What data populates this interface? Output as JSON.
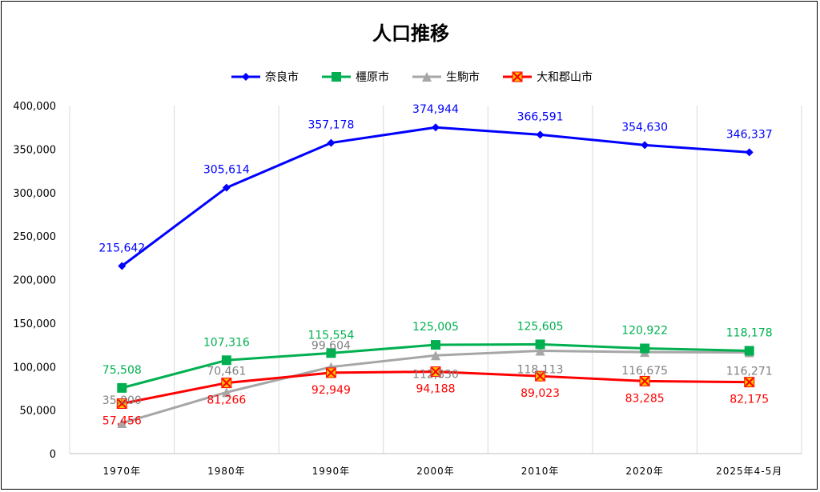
{
  "chart_data": {
    "type": "line",
    "title": "人口推移",
    "xlabel": "",
    "ylabel": "",
    "categories": [
      "1970年",
      "1980年",
      "1990年",
      "2000年",
      "2010年",
      "2020年",
      "2025年4-5月"
    ],
    "ylim": [
      0,
      400000
    ],
    "yticks": [
      0,
      50000,
      100000,
      150000,
      200000,
      250000,
      300000,
      350000,
      400000
    ],
    "ytick_labels": [
      "0",
      "50,000",
      "100,000",
      "150,000",
      "200,000",
      "250,000",
      "300,000",
      "350,000",
      "400,000"
    ],
    "grid": "vertical",
    "legend_position": "top",
    "series": [
      {
        "name": "奈良市",
        "color": "#0000ff",
        "marker": "diamond",
        "values": [
          215642,
          305614,
          357178,
          374944,
          366591,
          354630,
          346337
        ],
        "labels": [
          "215,642",
          "305,614",
          "357,178",
          "374,944",
          "366,591",
          "354,630",
          "346,337"
        ]
      },
      {
        "name": "橿原市",
        "color": "#00b050",
        "marker": "square",
        "values": [
          75508,
          107316,
          115554,
          125005,
          125605,
          120922,
          118178
        ],
        "labels": [
          "75,508",
          "107,316",
          "115,554",
          "125,005",
          "125,605",
          "120,922",
          "118,178"
        ]
      },
      {
        "name": "生駒市",
        "color": "#a6a6a6",
        "marker": "triangle",
        "values": [
          35000,
          70461,
          99604,
          112830,
          118113,
          116675,
          116271
        ],
        "labels": [
          "35,000",
          "70,461",
          "99,604",
          "112,830",
          "118,113",
          "116,675",
          "116,271"
        ]
      },
      {
        "name": "大和郡山市",
        "color": "#ff0000",
        "marker": "x-square",
        "values": [
          57456,
          81266,
          92949,
          94188,
          89023,
          83285,
          82175
        ],
        "labels": [
          "57,456",
          "81,266",
          "92,949",
          "94,188",
          "89,023",
          "83,285",
          "82,175"
        ]
      }
    ]
  }
}
